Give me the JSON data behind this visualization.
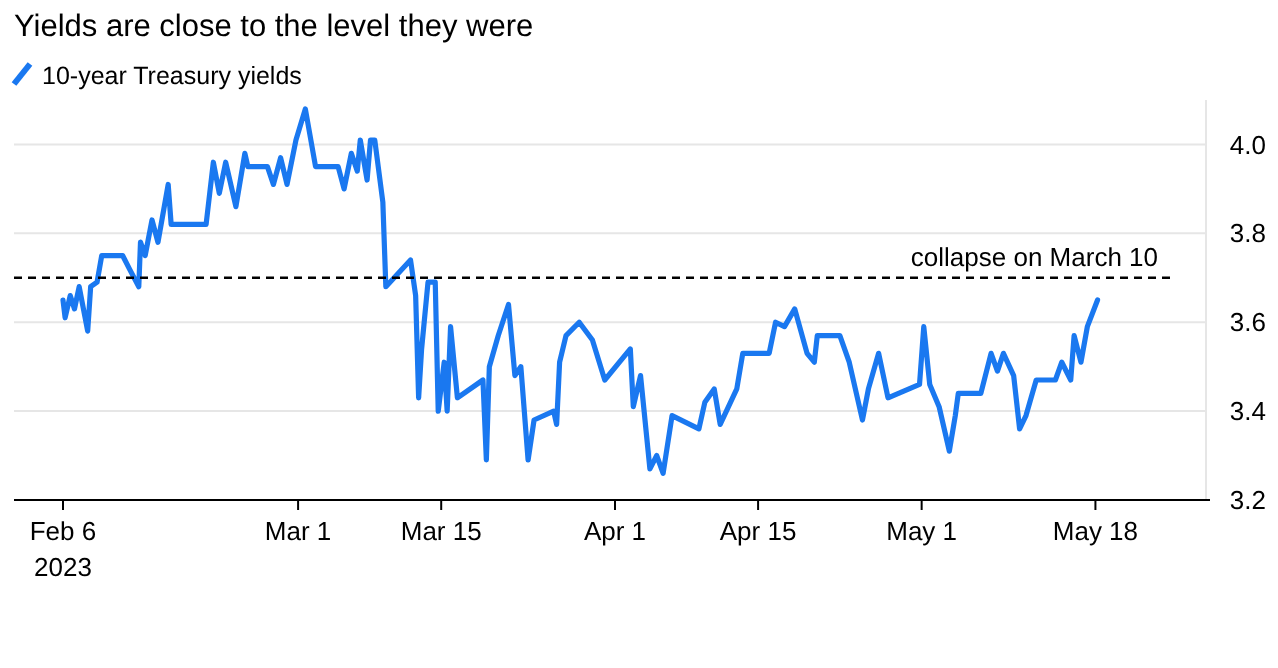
{
  "chart_data": {
    "type": "line",
    "title": "Yields are close to the level they were",
    "x": [
      "2023-02-06T00:00",
      "2023-02-06T05:00",
      "2023-02-06T17:00",
      "2023-02-07T03:00",
      "2023-02-07T14:00",
      "2023-02-08T10:00",
      "2023-02-08T17:00",
      "2023-02-09T08:00",
      "2023-02-09T19:00",
      "2023-02-11T20:00",
      "2023-02-12T12:00",
      "2023-02-13T10:00",
      "2023-02-13T14:00",
      "2023-02-14T01:00",
      "2023-02-14T17:00",
      "2023-02-15T07:00",
      "2023-02-16T07:00",
      "2023-02-16T14:00",
      "2023-02-20T00:00",
      "2023-02-20T17:00",
      "2023-02-21T07:00",
      "2023-02-21T22:00",
      "2023-02-22T22:00",
      "2023-02-23T19:00",
      "2023-02-24T02:00",
      "2023-02-26T00:00",
      "2023-02-26T14:00",
      "2023-02-27T07:00",
      "2023-02-27T22:00",
      "2023-02-28T19:00",
      "2023-03-01T17:00",
      "2023-03-02T17:00",
      "2023-03-04T22:00",
      "2023-03-05T12:00",
      "2023-03-06T05:00",
      "2023-03-06T19:00",
      "2023-03-07T02:00",
      "2023-03-07T18:00",
      "2023-03-08T02:00",
      "2023-03-08T12:00",
      "2023-03-09T07:00",
      "2023-03-09T14:00",
      "2023-03-12T00:00",
      "2023-03-12T12:00",
      "2023-03-12T19:00",
      "2023-03-13T02:00",
      "2023-03-13T17:00",
      "2023-03-14T10:00",
      "2023-03-14T17:00",
      "2023-03-15T07:00",
      "2023-03-15T14:00",
      "2023-03-15T22:00",
      "2023-03-16T14:00",
      "2023-03-19T02:00",
      "2023-03-19T10:00",
      "2023-03-19T17:00",
      "2023-03-20T14:00",
      "2023-03-21T14:00",
      "2023-03-22T05:00",
      "2023-03-22T19:00",
      "2023-03-23T12:00",
      "2023-03-24T02:00",
      "2023-03-26T00:00",
      "2023-03-26T07:00",
      "2023-03-26T14:00",
      "2023-03-27T05:00",
      "2023-03-28T12:00",
      "2023-03-29T19:00",
      "2023-03-31T00:00",
      "2023-04-02T12:00",
      "2023-04-02T19:00",
      "2023-04-03T12:00",
      "2023-04-04T10:00",
      "2023-04-05T02:00",
      "2023-04-05T17:00",
      "2023-04-06T14:00",
      "2023-04-09T05:00",
      "2023-04-09T19:00",
      "2023-04-10T17:00",
      "2023-04-11T07:00",
      "2023-04-12T22:00",
      "2023-04-13T12:00",
      "2023-04-16T02:00",
      "2023-04-16T17:00",
      "2023-04-17T14:00",
      "2023-04-18T14:00",
      "2023-04-19T19:00",
      "2023-04-20T12:00",
      "2023-04-20T19:00",
      "2023-04-23T00:00",
      "2023-04-23T22:00",
      "2023-04-25T05:00",
      "2023-04-25T19:00",
      "2023-04-26T19:00",
      "2023-04-27T17:00",
      "2023-04-30T19:00",
      "2023-05-01T05:00",
      "2023-05-01T19:00",
      "2023-05-02T17:00",
      "2023-05-03T17:00",
      "2023-05-04T07:00",
      "2023-05-04T14:00",
      "2023-05-06T19:00",
      "2023-05-07T19:00",
      "2023-05-08T10:00",
      "2023-05-09T00:00",
      "2023-05-10T00:00",
      "2023-05-10T14:00",
      "2023-05-11T05:00",
      "2023-05-12T05:00",
      "2023-05-14T02:00",
      "2023-05-14T17:00",
      "2023-05-15T14:00",
      "2023-05-15T22:00",
      "2023-05-16T14:00",
      "2023-05-17T05:00",
      "2023-05-18T05:00"
    ],
    "series": [
      {
        "name": "10-year Treasury yields",
        "color": "#1a78f0",
        "values": [
          3.65,
          3.61,
          3.66,
          3.63,
          3.68,
          3.58,
          3.68,
          3.69,
          3.75,
          3.75,
          3.72,
          3.68,
          3.78,
          3.75,
          3.83,
          3.78,
          3.91,
          3.82,
          3.82,
          3.96,
          3.89,
          3.96,
          3.86,
          3.98,
          3.95,
          3.95,
          3.91,
          3.97,
          3.91,
          4.01,
          4.08,
          3.95,
          3.95,
          3.9,
          3.98,
          3.94,
          4.01,
          3.92,
          4.01,
          4.01,
          3.87,
          3.68,
          3.74,
          3.66,
          3.43,
          3.54,
          3.69,
          3.69,
          3.4,
          3.51,
          3.4,
          3.59,
          3.43,
          3.47,
          3.29,
          3.5,
          3.57,
          3.64,
          3.48,
          3.5,
          3.29,
          3.38,
          3.4,
          3.37,
          3.51,
          3.57,
          3.6,
          3.56,
          3.47,
          3.54,
          3.41,
          3.48,
          3.27,
          3.3,
          3.26,
          3.39,
          3.36,
          3.42,
          3.45,
          3.37,
          3.45,
          3.53,
          3.53,
          3.6,
          3.59,
          3.63,
          3.53,
          3.51,
          3.57,
          3.57,
          3.51,
          3.38,
          3.45,
          3.53,
          3.43,
          3.46,
          3.59,
          3.46,
          3.41,
          3.31,
          3.39,
          3.44,
          3.44,
          3.53,
          3.49,
          3.53,
          3.48,
          3.36,
          3.39,
          3.47,
          3.47,
          3.51,
          3.47,
          3.57,
          3.51,
          3.59,
          3.65
        ]
      }
    ],
    "xlim": [
      "2023-02-01T05:00",
      "2023-05-29T05:00"
    ],
    "xticks": [
      {
        "value": "2023-02-06",
        "label": "Feb 6\n2023"
      },
      {
        "value": "2023-03-01",
        "label": "Mar 1"
      },
      {
        "value": "2023-03-15",
        "label": "Mar 15"
      },
      {
        "value": "2023-04-01",
        "label": "Apr 1"
      },
      {
        "value": "2023-04-15",
        "label": "Apr 15"
      },
      {
        "value": "2023-05-01",
        "label": "May 1"
      },
      {
        "value": "2023-05-18",
        "label": "May 18"
      }
    ],
    "ylim": [
      3.2,
      4.1
    ],
    "yticks": [
      3.2,
      3.4,
      3.6,
      3.8,
      {
        "value": 4,
        "label": "4.0"
      }
    ],
    "ref_lines": [
      {
        "axis": "y",
        "value": 3.7,
        "label": "collapse on March 10",
        "color": "#000000",
        "line_style": "dashed"
      }
    ],
    "grid": "y",
    "legend": "top left",
    "line_style": "solid",
    "marker": "none"
  }
}
